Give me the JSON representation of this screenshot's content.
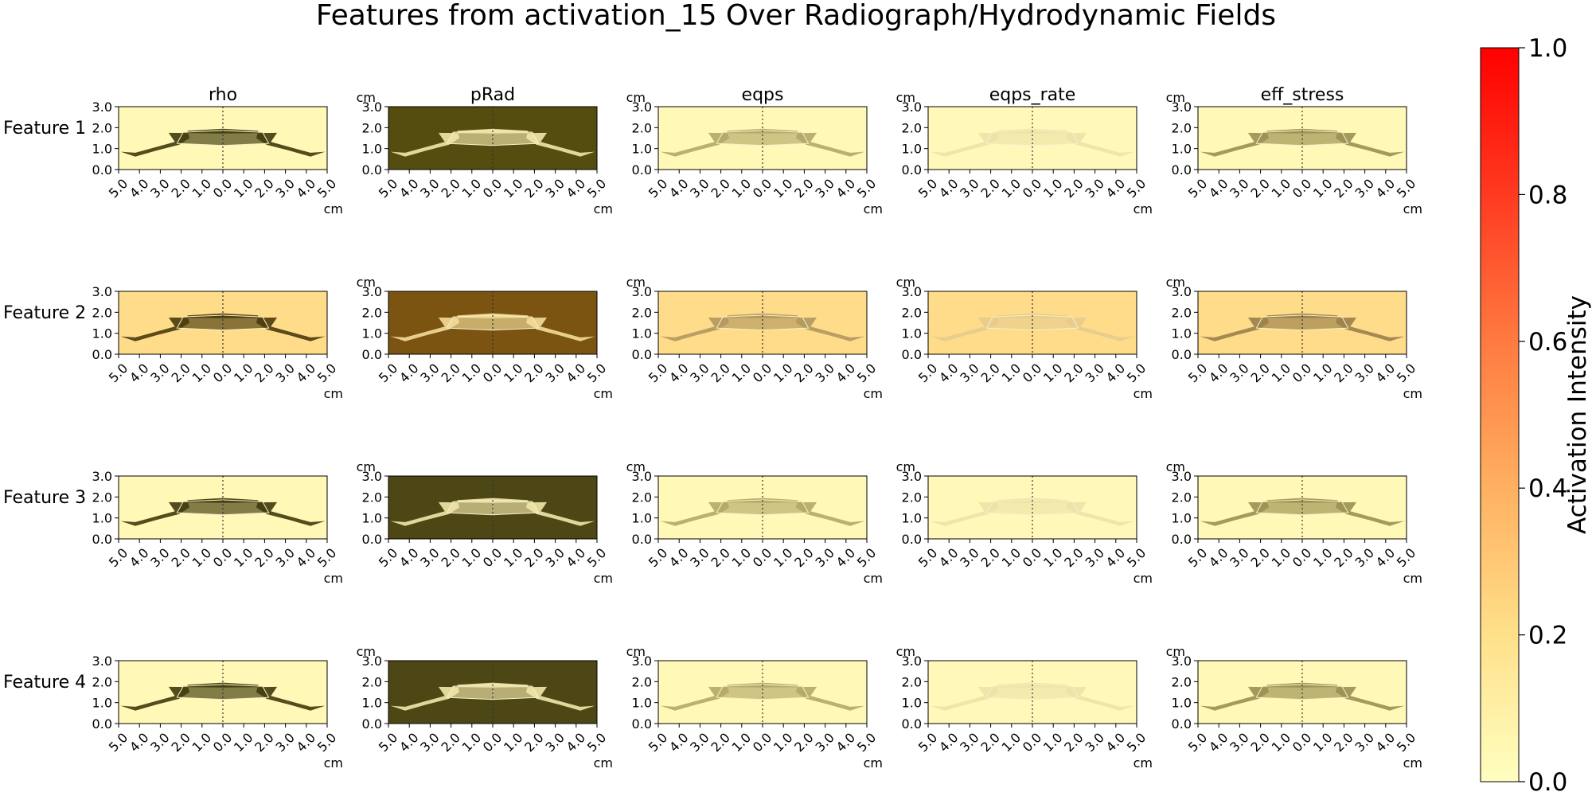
{
  "figure_title": "Features from activation_15 Over Radiograph/Hydrodynamic Fields",
  "chart_data": {
    "type": "heatmap",
    "columns": [
      "rho",
      "pRad",
      "eqps",
      "eqps_rate",
      "eff_stress"
    ],
    "rows": [
      "Feature 1",
      "Feature 2",
      "Feature 3",
      "Feature 4"
    ],
    "x_unit": "cm",
    "y_unit": "cm",
    "x_ticks": [
      "5.0",
      "4.0",
      "3.0",
      "2.0",
      "1.0",
      "0.0",
      "1.0",
      "2.0",
      "3.0",
      "4.0",
      "5.0"
    ],
    "y_ticks": [
      "0.0",
      "1.0",
      "2.0",
      "3.0"
    ],
    "xlim": [
      -5,
      5
    ],
    "ylim": [
      0,
      3
    ],
    "center_line_x": 0,
    "colorbar": {
      "label": "Activation Intensity",
      "ticks": [
        "0.0",
        "0.2",
        "0.4",
        "0.6",
        "0.8",
        "1.0"
      ],
      "range": [
        0,
        1
      ],
      "colormap": [
        "#ffffc0",
        "#ffe08a",
        "#ffb060",
        "#ff7a40",
        "#ff3a20",
        "#ff0000"
      ]
    },
    "panel_backgrounds": [
      [
        "#fff8b6",
        "#554c10",
        "#fff8b6",
        "#fff8b8",
        "#fff8b6"
      ],
      [
        "#ffdc8a",
        "#7a5410",
        "#ffdc8a",
        "#ffdc8a",
        "#ffdc8a"
      ],
      [
        "#fff8b6",
        "#4c4714",
        "#fff8b6",
        "#fff8b8",
        "#fff8b6"
      ],
      [
        "#fff8b6",
        "#4c4714",
        "#fff8b6",
        "#fff8b8",
        "#fff8b6"
      ]
    ],
    "panel_body_tint": [
      [
        "#3f3a0c",
        "#f1e7aa",
        "#b3a768",
        "#ece2a8",
        "#9a8f52"
      ],
      [
        "#4a3a0c",
        "#f3dc9a",
        "#b39860",
        "#e6cc8c",
        "#9a804a"
      ],
      [
        "#3f3a0c",
        "#f1e7aa",
        "#b3a768",
        "#ece2a8",
        "#9a8f52"
      ],
      [
        "#3f3a0c",
        "#f1e7aa",
        "#b3a768",
        "#ece2a8",
        "#9a8f52"
      ]
    ]
  }
}
